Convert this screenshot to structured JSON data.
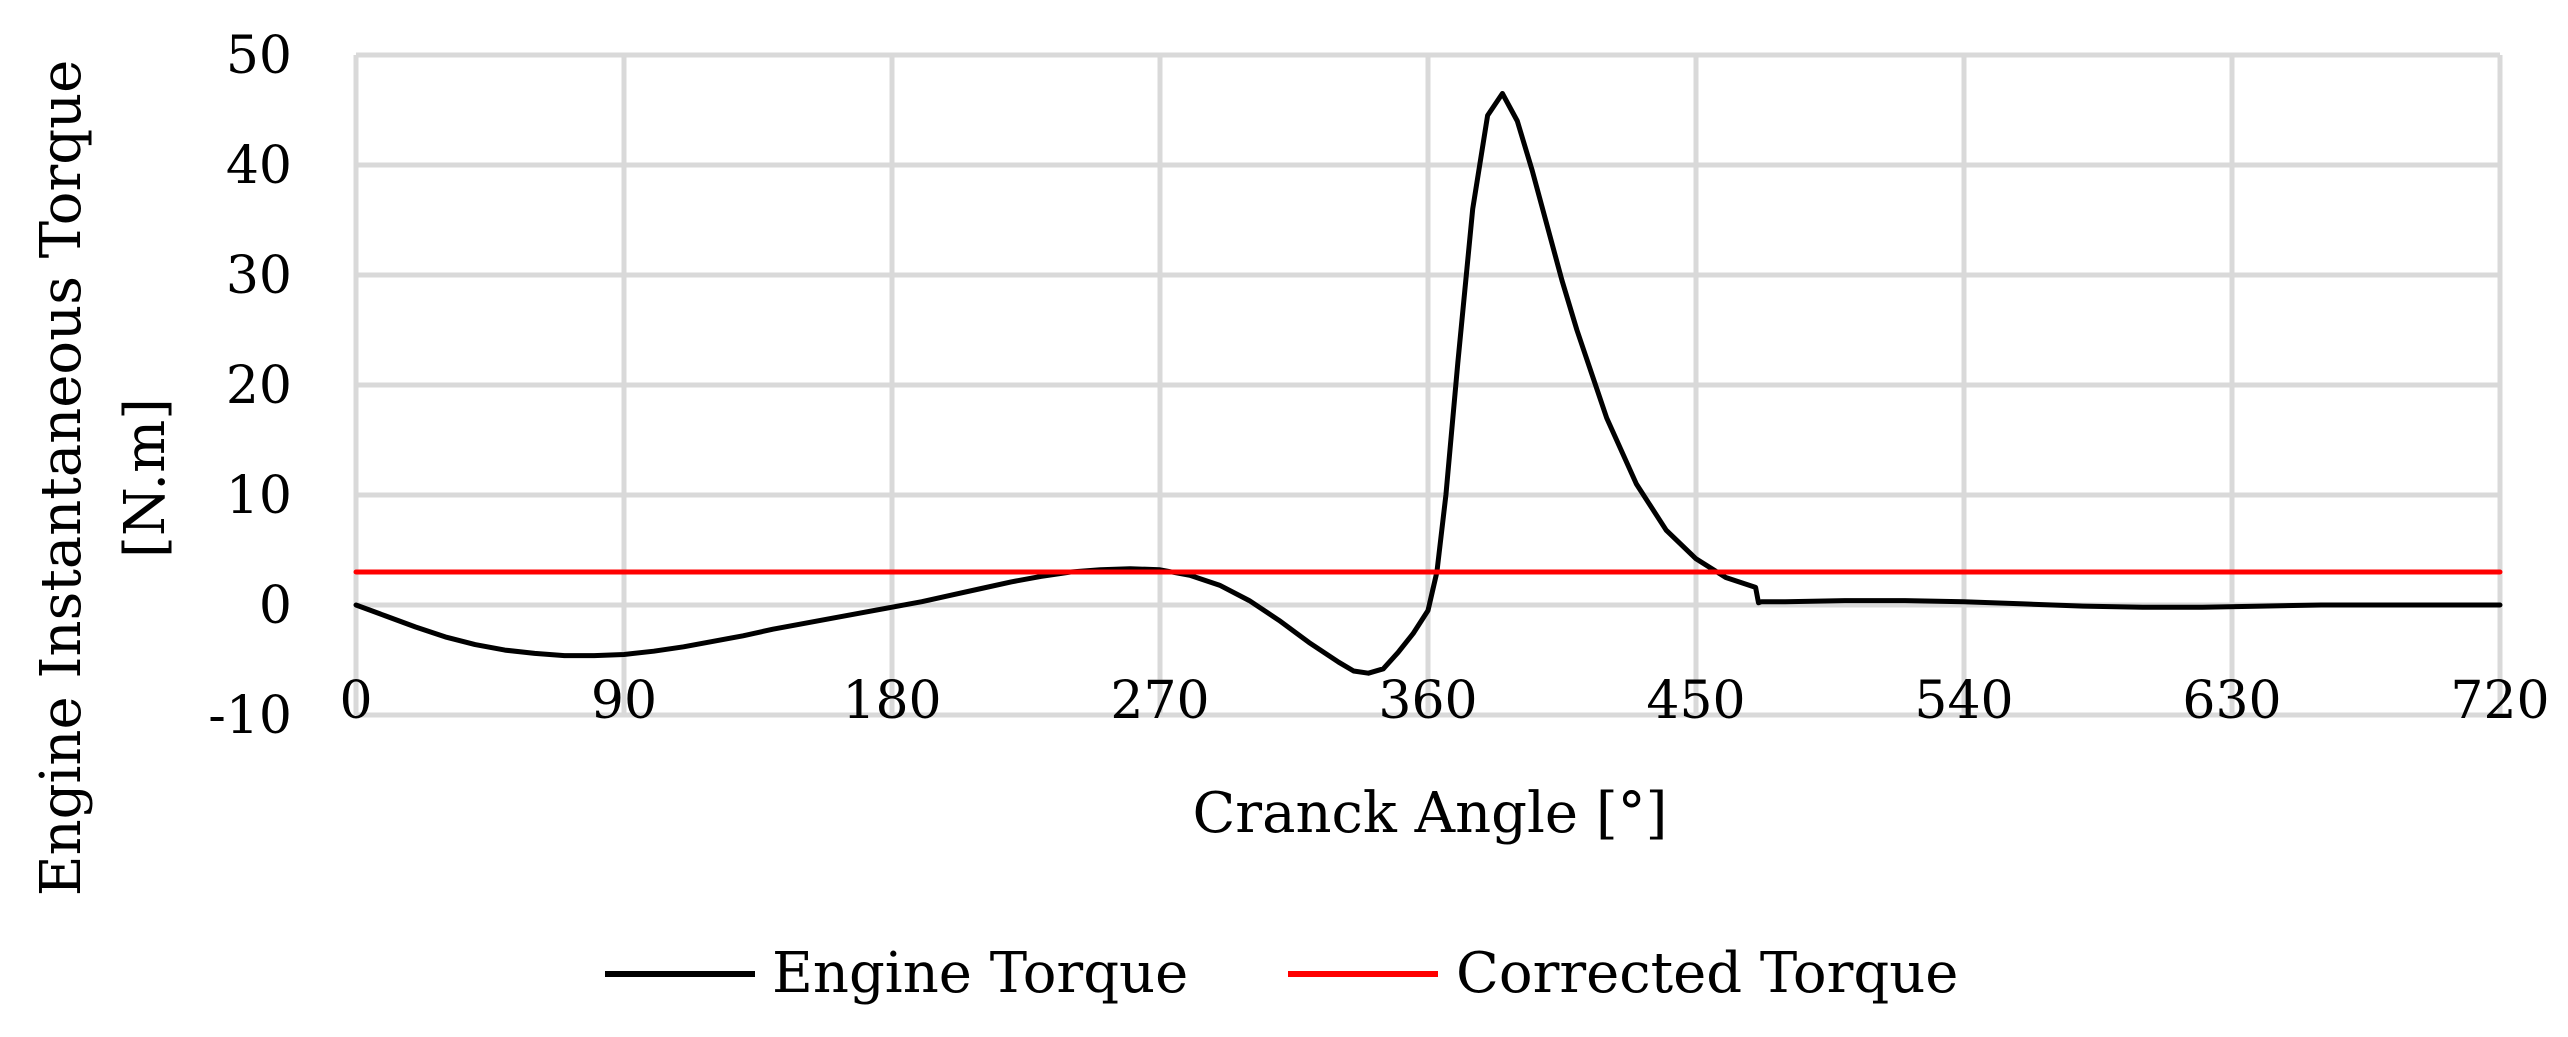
{
  "chart_data": {
    "type": "line",
    "title": "",
    "xlabel": "Cranck Angle [°]",
    "ylabel": "Engine Instantaneous  Torque [N.m]",
    "ylabel_lines": [
      "Engine Instantaneous  Torque",
      "[N.m]"
    ],
    "xlim": [
      0,
      720
    ],
    "ylim": [
      -10,
      50
    ],
    "xticks": [
      0,
      90,
      180,
      270,
      360,
      450,
      540,
      630,
      720
    ],
    "yticks": [
      -10,
      0,
      10,
      20,
      30,
      40,
      50
    ],
    "grid": true,
    "legend_position": "bottom",
    "series": [
      {
        "name": "Engine Torque",
        "color": "#000000",
        "x": [
          0,
          10,
          20,
          30,
          40,
          50,
          60,
          70,
          80,
          90,
          100,
          110,
          120,
          130,
          140,
          150,
          160,
          170,
          180,
          190,
          200,
          210,
          220,
          230,
          240,
          250,
          260,
          270,
          280,
          290,
          300,
          310,
          320,
          330,
          335,
          340,
          345,
          350,
          355,
          360,
          363,
          366,
          370,
          375,
          380,
          385,
          390,
          395,
          400,
          405,
          410,
          420,
          430,
          440,
          450,
          460,
          470,
          471,
          472,
          480,
          500,
          520,
          540,
          560,
          580,
          600,
          620,
          640,
          660,
          680,
          700,
          720
        ],
        "y": [
          0,
          -1.0,
          -2.0,
          -2.9,
          -3.6,
          -4.1,
          -4.4,
          -4.6,
          -4.6,
          -4.5,
          -4.2,
          -3.8,
          -3.3,
          -2.8,
          -2.2,
          -1.7,
          -1.2,
          -0.7,
          -0.2,
          0.3,
          0.9,
          1.5,
          2.1,
          2.6,
          3.0,
          3.2,
          3.3,
          3.2,
          2.7,
          1.8,
          0.4,
          -1.4,
          -3.4,
          -5.2,
          -6.0,
          -6.2,
          -5.8,
          -4.3,
          -2.6,
          -0.5,
          3.0,
          10.0,
          22.0,
          36.0,
          44.5,
          46.5,
          44.0,
          39.5,
          34.5,
          29.5,
          25.0,
          17.0,
          11.0,
          6.8,
          4.2,
          2.5,
          1.6,
          0.2,
          0.3,
          0.3,
          0.4,
          0.4,
          0.3,
          0.1,
          -0.1,
          -0.2,
          -0.2,
          -0.1,
          0,
          0,
          0,
          0
        ]
      },
      {
        "name": "Corrected Torque",
        "color": "#ff0000",
        "x": [
          0,
          720
        ],
        "y": [
          3.0,
          3.0
        ]
      }
    ]
  }
}
